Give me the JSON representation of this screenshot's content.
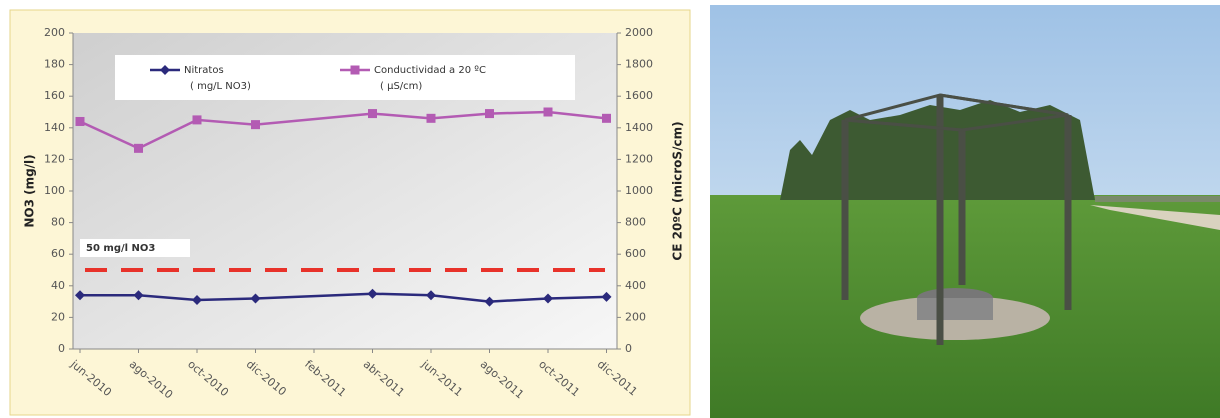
{
  "chart_data": {
    "type": "line",
    "categories": [
      "jun-2010",
      "ago-2010",
      "oct-2010",
      "dic-2010",
      "feb-2011",
      "abr-2011",
      "jun-2011",
      "ago-2011",
      "oct-2011",
      "dic-2011"
    ],
    "x": [
      "jun-2010",
      "ago-2010",
      "oct-2010",
      "dic-2010",
      "abr-2011",
      "jun-2011",
      "ago-2011",
      "oct-2011",
      "dic-2011"
    ],
    "series": [
      {
        "name": "Nitratos",
        "unit": "( mg/L NO3)",
        "color": "#2b2a7c",
        "marker": "diamond",
        "values": [
          34,
          34,
          31,
          32,
          35,
          34,
          30,
          32,
          33
        ]
      },
      {
        "name": "Conductividad a 20 ºC",
        "unit": "( µS/cm)",
        "color": "#b35bb3",
        "marker": "square",
        "axis": "y2",
        "values": [
          1440,
          1270,
          1450,
          1420,
          1490,
          1460,
          1490,
          1500,
          1460
        ]
      }
    ],
    "ylabel": "NO3 (mg/l)",
    "y2label": "CE 20ºC (microS/cm)",
    "ylim": [
      0,
      200
    ],
    "yticks": [
      0,
      20,
      40,
      60,
      80,
      100,
      120,
      140,
      160,
      180,
      200
    ],
    "y2lim": [
      0,
      2000
    ],
    "y2ticks": [
      0,
      200,
      400,
      600,
      800,
      1000,
      1200,
      1400,
      1600,
      1800,
      2000
    ],
    "threshold": {
      "value": 50,
      "label": "50 mg/l NO3",
      "color": "#e8322a"
    }
  }
}
